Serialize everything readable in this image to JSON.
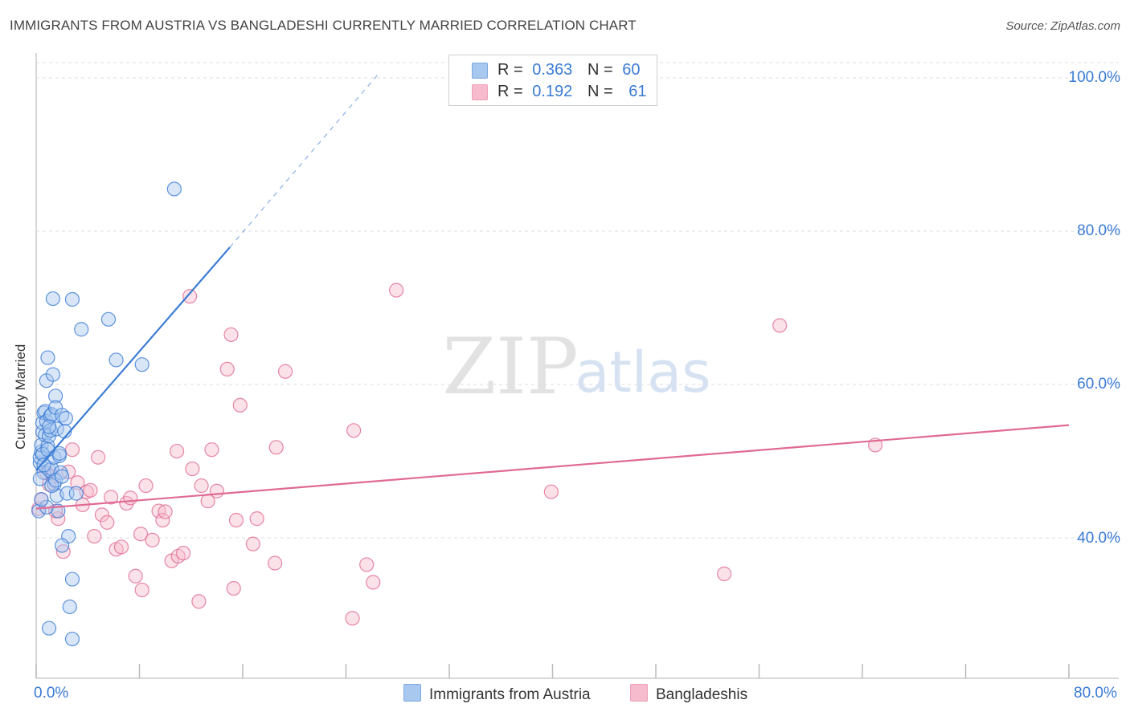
{
  "header": {
    "title": "IMMIGRANTS FROM AUSTRIA VS BANGLADESHI CURRENTLY MARRIED CORRELATION CHART",
    "source": "Source: ZipAtlas.com"
  },
  "watermark": {
    "zip": "ZIP",
    "atlas": "atlas"
  },
  "legend": {
    "rows": [
      {
        "r_label": "R =",
        "r_value": "0.363",
        "n_label": "N =",
        "n_value": "60",
        "color": "#a9c8f0"
      },
      {
        "r_label": "R =",
        "r_value": "0.192",
        "n_label": "N =",
        "n_value": "61",
        "color": "#f6bccd"
      }
    ]
  },
  "bottom_legend": {
    "series1": "Immigrants from Austria",
    "series2": "Bangladeshis"
  },
  "colors": {
    "blue": "#3a7bd5",
    "blue_fill": "#a9c8f0",
    "pink": "#e06a94",
    "pink_fill": "#f6bccd",
    "grid": "#dddddd",
    "axis": "#cccccc"
  },
  "chart_data": {
    "type": "scatter",
    "title": "IMMIGRANTS FROM AUSTRIA VS BANGLADESHI CURRENTLY MARRIED CORRELATION CHART",
    "xlabel": "",
    "ylabel": "Currently Married",
    "xlim": [
      0,
      80
    ],
    "ylim": [
      20,
      100
    ],
    "x_tick_labels": [
      "0.0%",
      "80.0%"
    ],
    "y_tick_labels": [
      "40.0%",
      "60.0%",
      "80.0%",
      "100.0%"
    ],
    "y_ticks": [
      40,
      60,
      80,
      100
    ],
    "series": [
      {
        "name": "Immigrants from Austria",
        "r": 0.363,
        "n": 60,
        "trend": {
          "x0": 0.0,
          "y0": 48.8,
          "x1": 15.0,
          "y1": 77.9,
          "dash_to_x": 26.5,
          "dash_to_y": 100.5
        },
        "points": [
          [
            0.2,
            43.5
          ],
          [
            0.3,
            49.8
          ],
          [
            0.3,
            50.5
          ],
          [
            0.4,
            51.2
          ],
          [
            0.4,
            52.1
          ],
          [
            0.5,
            53.8
          ],
          [
            0.5,
            55.0
          ],
          [
            0.6,
            56.3
          ],
          [
            0.6,
            48.5
          ],
          [
            0.7,
            53.4
          ],
          [
            0.7,
            56.5
          ],
          [
            0.8,
            60.5
          ],
          [
            0.8,
            55.2
          ],
          [
            0.9,
            63.5
          ],
          [
            0.9,
            52.0
          ],
          [
            1.0,
            53.3
          ],
          [
            1.0,
            48.8
          ],
          [
            1.1,
            55.9
          ],
          [
            1.1,
            54.0
          ],
          [
            1.2,
            56.1
          ],
          [
            1.2,
            49.0
          ],
          [
            1.3,
            61.3
          ],
          [
            1.3,
            71.2
          ],
          [
            1.4,
            47.0
          ],
          [
            1.4,
            50.5
          ],
          [
            1.5,
            58.5
          ],
          [
            1.5,
            57.0
          ],
          [
            1.6,
            54.2
          ],
          [
            1.6,
            45.5
          ],
          [
            1.7,
            43.5
          ],
          [
            1.8,
            50.7
          ],
          [
            1.9,
            48.5
          ],
          [
            2.0,
            56.0
          ],
          [
            2.2,
            53.9
          ],
          [
            2.4,
            45.8
          ],
          [
            2.5,
            40.2
          ],
          [
            2.6,
            31.0
          ],
          [
            2.8,
            26.8
          ],
          [
            3.1,
            45.8
          ],
          [
            3.5,
            67.2
          ],
          [
            5.6,
            68.5
          ],
          [
            6.2,
            63.2
          ],
          [
            8.2,
            62.6
          ],
          [
            10.7,
            85.5
          ],
          [
            1.0,
            28.2
          ],
          [
            2.8,
            71.1
          ],
          [
            2.0,
            39.0
          ],
          [
            2.8,
            34.6
          ],
          [
            0.5,
            50.9
          ],
          [
            1.8,
            51.0
          ],
          [
            0.3,
            47.7
          ],
          [
            1.2,
            46.8
          ],
          [
            0.8,
            44.0
          ],
          [
            2.3,
            55.6
          ],
          [
            0.4,
            45.0
          ],
          [
            1.0,
            54.5
          ],
          [
            1.5,
            47.5
          ],
          [
            0.6,
            49.5
          ],
          [
            2.0,
            48.0
          ],
          [
            0.9,
            51.5
          ]
        ]
      },
      {
        "name": "Bangladeshis",
        "r": 0.192,
        "n": 61,
        "trend": {
          "x0": 0.0,
          "y0": 43.8,
          "x1": 80.0,
          "y1": 54.7
        },
        "points": [
          [
            0.2,
            43.8
          ],
          [
            0.4,
            45.0
          ],
          [
            0.8,
            48.5
          ],
          [
            1.0,
            47.0
          ],
          [
            1.3,
            48.0
          ],
          [
            1.7,
            42.5
          ],
          [
            2.1,
            38.2
          ],
          [
            2.5,
            48.6
          ],
          [
            2.8,
            51.5
          ],
          [
            3.2,
            47.2
          ],
          [
            3.6,
            44.3
          ],
          [
            3.9,
            46.0
          ],
          [
            4.2,
            46.2
          ],
          [
            4.5,
            40.2
          ],
          [
            4.8,
            50.5
          ],
          [
            5.1,
            43.0
          ],
          [
            5.5,
            42.0
          ],
          [
            5.8,
            45.3
          ],
          [
            6.2,
            38.5
          ],
          [
            6.6,
            38.8
          ],
          [
            7.0,
            44.5
          ],
          [
            7.3,
            45.2
          ],
          [
            7.7,
            35.0
          ],
          [
            8.1,
            40.5
          ],
          [
            8.2,
            33.2
          ],
          [
            8.5,
            46.8
          ],
          [
            9.0,
            39.7
          ],
          [
            9.5,
            43.5
          ],
          [
            9.8,
            42.3
          ],
          [
            10.0,
            43.4
          ],
          [
            10.5,
            37.0
          ],
          [
            10.9,
            51.3
          ],
          [
            11.0,
            37.6
          ],
          [
            11.4,
            38.0
          ],
          [
            11.9,
            71.5
          ],
          [
            12.1,
            49.0
          ],
          [
            12.6,
            31.7
          ],
          [
            12.8,
            46.8
          ],
          [
            13.3,
            44.8
          ],
          [
            13.6,
            51.5
          ],
          [
            14.0,
            46.1
          ],
          [
            14.8,
            62.0
          ],
          [
            15.1,
            66.5
          ],
          [
            15.3,
            33.4
          ],
          [
            15.5,
            42.3
          ],
          [
            15.8,
            57.3
          ],
          [
            16.8,
            39.2
          ],
          [
            17.1,
            42.5
          ],
          [
            18.5,
            36.7
          ],
          [
            18.6,
            51.8
          ],
          [
            19.3,
            61.7
          ],
          [
            24.5,
            29.5
          ],
          [
            24.6,
            54.0
          ],
          [
            25.6,
            36.5
          ],
          [
            26.1,
            34.2
          ],
          [
            27.9,
            72.3
          ],
          [
            39.9,
            46.0
          ],
          [
            53.3,
            35.3
          ],
          [
            57.6,
            67.7
          ],
          [
            65.0,
            52.1
          ],
          [
            1.5,
            43.5
          ]
        ]
      }
    ]
  }
}
